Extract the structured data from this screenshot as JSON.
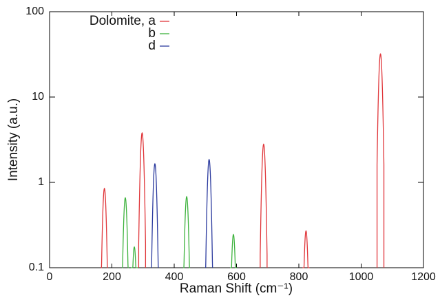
{
  "chart_data": {
    "type": "spectrum",
    "xlabel": "Raman Shift (cm⁻¹)",
    "ylabel": "Intensity (a.u.)",
    "xlim": [
      0,
      1200
    ],
    "xticks": [
      0,
      200,
      400,
      600,
      800,
      1000,
      1200
    ],
    "ylim": [
      0.1,
      100
    ],
    "yticks": [
      0.1,
      1,
      10,
      100
    ],
    "log_y": true,
    "legend": "upper left",
    "series": [
      {
        "name": "Dolomite, a",
        "color": "#e0363a",
        "x": [
          176,
          297,
          687,
          823,
          1062
        ],
        "values": [
          0.85,
          3.8,
          2.8,
          0.27,
          32
        ]
      },
      {
        "name": "b",
        "color": "#3cb23c",
        "x": [
          243,
          272,
          440,
          590
        ],
        "values": [
          0.66,
          0.175,
          0.68,
          0.245
        ]
      },
      {
        "name": "d",
        "color": "#2b3a9e",
        "x": [
          338,
          512
        ],
        "values": [
          1.65,
          1.85
        ]
      }
    ]
  }
}
